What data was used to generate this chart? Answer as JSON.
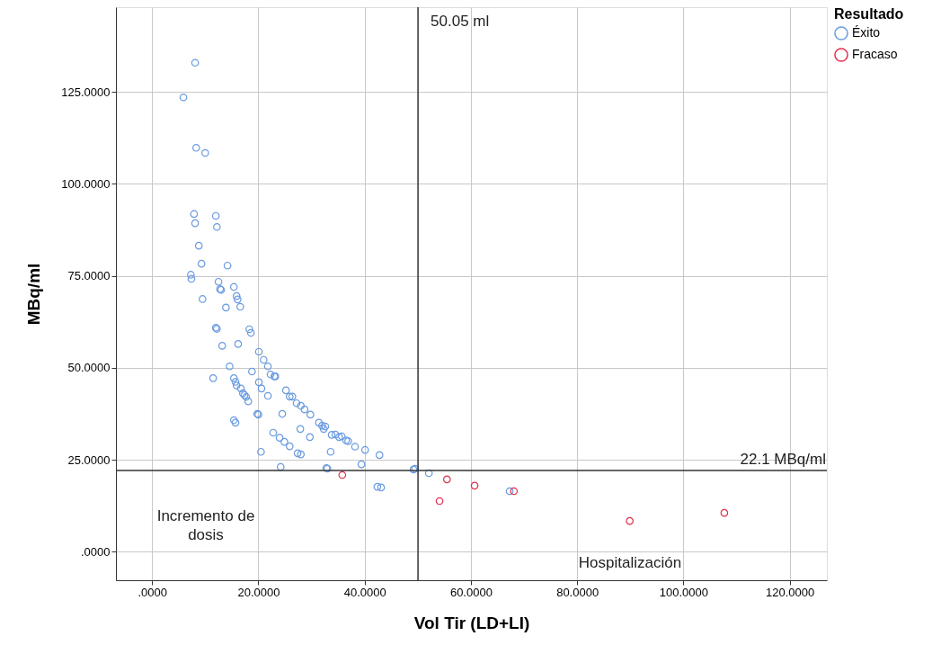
{
  "chart_data": {
    "type": "scatter",
    "xlabel": "Vol Tir (LD+LI)",
    "ylabel": "MBq/ml",
    "legend_title": "Resultado",
    "legend": "top right",
    "grid": true,
    "marker": "circle",
    "xlim": [
      -6.8,
      127.0
    ],
    "ylim": [
      -7.7,
      148.0
    ],
    "xticks": [
      {
        "value": 0,
        "label": ".0000"
      },
      {
        "value": 20,
        "label": "20.0000"
      },
      {
        "value": 40,
        "label": "40.0000"
      },
      {
        "value": 60,
        "label": "60.0000"
      },
      {
        "value": 80,
        "label": "80.0000"
      },
      {
        "value": 100,
        "label": "100.0000"
      },
      {
        "value": 120,
        "label": "120.0000"
      }
    ],
    "yticks": [
      {
        "value": 0,
        "label": ".0000"
      },
      {
        "value": 25,
        "label": "25.0000"
      },
      {
        "value": 50,
        "label": "50.0000"
      },
      {
        "value": 75,
        "label": "75.0000"
      },
      {
        "value": 100,
        "label": "100.0000"
      },
      {
        "value": 125,
        "label": "125.0000"
      }
    ],
    "ref_lines": [
      {
        "axis": "x",
        "value": 50.05,
        "label": "50.05 ml",
        "color": "#333333"
      },
      {
        "axis": "y",
        "value": 22.1,
        "label": "22.1 MBq/ml",
        "color": "#333333"
      }
    ],
    "annotations": [
      "Incremento de dosis",
      "Hospitalización"
    ],
    "series": [
      {
        "name": "Éxito",
        "color": "#6a9be0",
        "x": [
          8.1,
          5.9,
          8.3,
          10.0,
          7.9,
          12.0,
          8.1,
          12.2,
          8.8,
          9.3,
          14.2,
          7.3,
          7.4,
          12.5,
          12.8,
          13.0,
          15.4,
          9.5,
          15.9,
          16.1,
          16.6,
          13.9,
          12.0,
          12.2,
          18.3,
          18.6,
          13.2,
          16.2,
          20.1,
          21.0,
          14.6,
          21.8,
          11.5,
          18.8,
          15.4,
          15.7,
          15.9,
          22.3,
          23.0,
          23.2,
          20.1,
          20.6,
          21.8,
          25.2,
          16.7,
          17.1,
          17.4,
          17.7,
          18.1,
          25.9,
          26.4,
          27.2,
          28.0,
          28.7,
          29.8,
          24.5,
          19.8,
          20.0,
          15.4,
          15.7,
          27.9,
          31.4,
          32.0,
          32.3,
          32.6,
          29.7,
          22.8,
          24.0,
          24.9,
          25.9,
          20.5,
          33.8,
          34.5,
          35.2,
          35.7,
          36.5,
          36.9,
          38.2,
          40.1,
          42.8,
          33.6,
          27.4,
          28.0,
          24.2,
          32.8,
          33.0,
          39.4,
          42.4,
          43.1,
          49.2,
          49.5,
          52.1,
          67.3
        ],
        "values": [
          132.9,
          123.5,
          109.8,
          108.4,
          91.8,
          91.3,
          89.3,
          88.3,
          83.2,
          78.3,
          77.8,
          75.3,
          74.2,
          73.4,
          71.4,
          71.2,
          72.0,
          68.7,
          69.5,
          68.6,
          66.6,
          66.4,
          60.9,
          60.6,
          60.5,
          59.5,
          56.0,
          56.5,
          54.4,
          52.2,
          50.4,
          50.4,
          47.2,
          49.0,
          47.2,
          46.2,
          45.2,
          48.2,
          47.7,
          47.7,
          46.1,
          44.4,
          42.4,
          43.9,
          44.4,
          43.1,
          42.6,
          42.1,
          40.9,
          42.2,
          42.2,
          40.4,
          39.7,
          38.7,
          37.3,
          37.5,
          37.5,
          37.3,
          35.8,
          35.1,
          33.4,
          35.1,
          34.3,
          33.4,
          34.1,
          31.2,
          32.4,
          31.0,
          29.9,
          28.7,
          27.2,
          31.8,
          31.9,
          31.2,
          31.4,
          30.3,
          30.1,
          28.6,
          27.7,
          26.3,
          27.2,
          26.8,
          26.5,
          23.1,
          22.8,
          22.6,
          23.8,
          17.7,
          17.5,
          22.4,
          22.6,
          21.4,
          16.5
        ]
      },
      {
        "name": "Fracaso",
        "color": "#e0304e",
        "x": [
          35.8,
          55.5,
          54.1,
          60.7,
          68.1,
          89.9,
          107.7
        ],
        "values": [
          20.9,
          19.7,
          13.8,
          18.0,
          16.5,
          8.4,
          10.6
        ]
      }
    ]
  }
}
